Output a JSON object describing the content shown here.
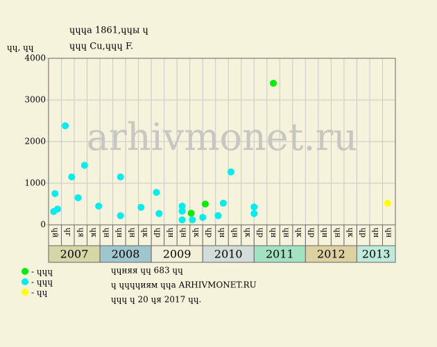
{
  "chart_data": {
    "type": "scatter",
    "title": "ɥɥɥа 1861,ɥɥы ɥ",
    "subtitle": "ɥɥɥ Cu,ɥɥɥ F.",
    "y_label": "ɥɥ, ɥɥ",
    "watermark": "arhivmonet.ru",
    "ylim": [
      0,
      4000
    ],
    "yticks": [
      0,
      1000,
      2000,
      3000,
      4000
    ],
    "xlim": [
      0,
      27
    ],
    "grid": true,
    "groups": [
      {
        "label": "2007",
        "color": "#d6d6a6",
        "categories": [
          "ɥй",
          "ɥг",
          "ɥя",
          "ɥк"
        ]
      },
      {
        "label": "2008",
        "color": "#9fc6cc",
        "categories": [
          "ɥн",
          "ɥн",
          "ɥн",
          "ɥк"
        ]
      },
      {
        "label": "2009",
        "color": "#f2f0d8",
        "categories": [
          "ɥр",
          "ɥн",
          "ɥн",
          "ɥк"
        ]
      },
      {
        "label": "2010",
        "color": "#d2dcd8",
        "categories": [
          "ɥр",
          "ɥн",
          "ɥн",
          "ɥк"
        ]
      },
      {
        "label": "2011",
        "color": "#a2e2c2",
        "categories": [
          "ɥр",
          "ɥн",
          "ɥн",
          "ɥк"
        ]
      },
      {
        "label": "2012",
        "color": "#ddd1a2",
        "categories": [
          "ɥр",
          "ɥн",
          "ɥн",
          "ɥк"
        ]
      },
      {
        "label": "2013",
        "color": "#bdeadb",
        "categories": [
          "ɥр",
          "ɥн",
          "ɥн"
        ]
      }
    ],
    "series": [
      {
        "name": "- ɥɥɥ",
        "color": "#00ee00",
        "x": [
          11.1,
          12.2,
          17.5
        ],
        "values": [
          280,
          500,
          3400
        ]
      },
      {
        "name": "- ɥɥɥ",
        "color": "#00eeee",
        "x": [
          0.4,
          0.5,
          0.7,
          1.3,
          1.8,
          2.3,
          2.8,
          3.9,
          5.6,
          5.6,
          7.2,
          8.4,
          8.6,
          10.4,
          10.4,
          10.4,
          11.2,
          12.0,
          13.2,
          13.6,
          14.2,
          16.0,
          16.0
        ],
        "values": [
          320,
          750,
          380,
          2380,
          1150,
          650,
          1430,
          450,
          220,
          1150,
          420,
          780,
          270,
          450,
          330,
          120,
          120,
          180,
          220,
          520,
          1270,
          430,
          270
        ]
      },
      {
        "name": "- ɥɥ",
        "color": "#ffff00",
        "x": [
          26.4
        ],
        "values": [
          520
        ]
      }
    ],
    "notes": [
      "ɥɥняя ɥɥ 683 ɥɥ",
      "ɥ ɥɥɥɥиям ɥɥа ARHIVMONET.RU",
      "ɥɥɥ ɥ 20 ɥя 2017 ɥɥ."
    ]
  }
}
